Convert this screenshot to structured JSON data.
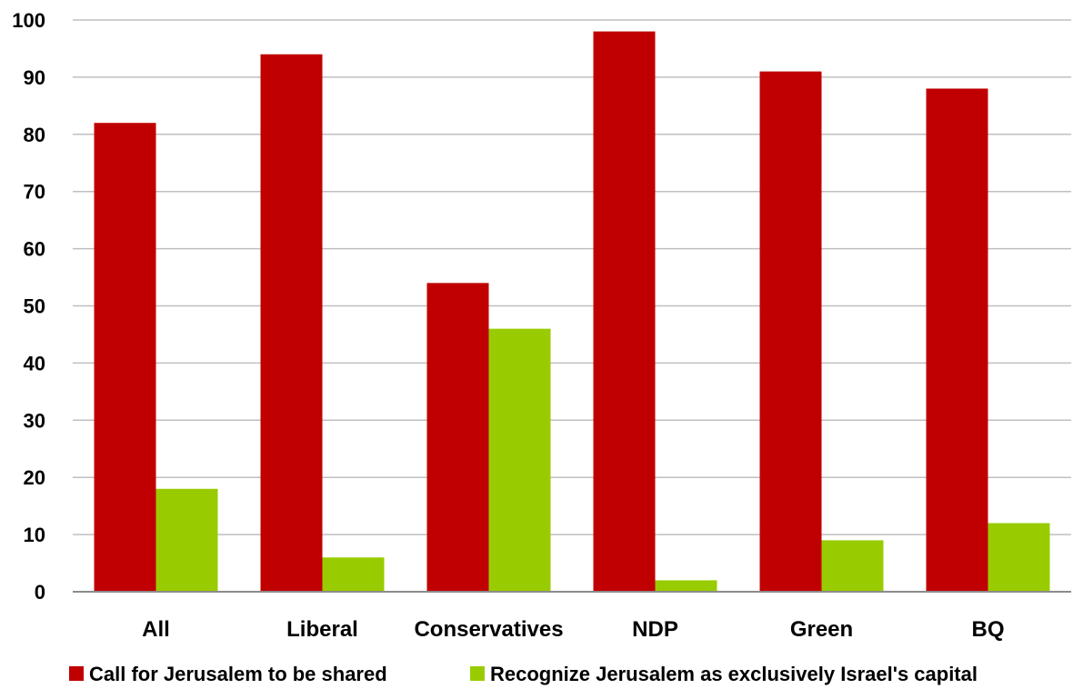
{
  "chart_data": {
    "type": "bar",
    "title": "",
    "xlabel": "",
    "ylabel": "",
    "categories": [
      "All",
      "Liberal",
      "Conservatives",
      "NDP",
      "Green",
      "BQ"
    ],
    "series": [
      {
        "name": "Call for Jerusalem to be shared",
        "color": "#c00000",
        "values": [
          82,
          94,
          54,
          98,
          91,
          88
        ]
      },
      {
        "name": "Recognize Jerusalem as exclusively Israel's capital",
        "color": "#99cc00",
        "values": [
          18,
          6,
          46,
          2,
          9,
          12
        ]
      }
    ],
    "ylim": [
      0,
      100
    ],
    "yticks": [
      0,
      10,
      20,
      30,
      40,
      50,
      60,
      70,
      80,
      90,
      100
    ],
    "grid": true,
    "legend_position": "bottom"
  }
}
